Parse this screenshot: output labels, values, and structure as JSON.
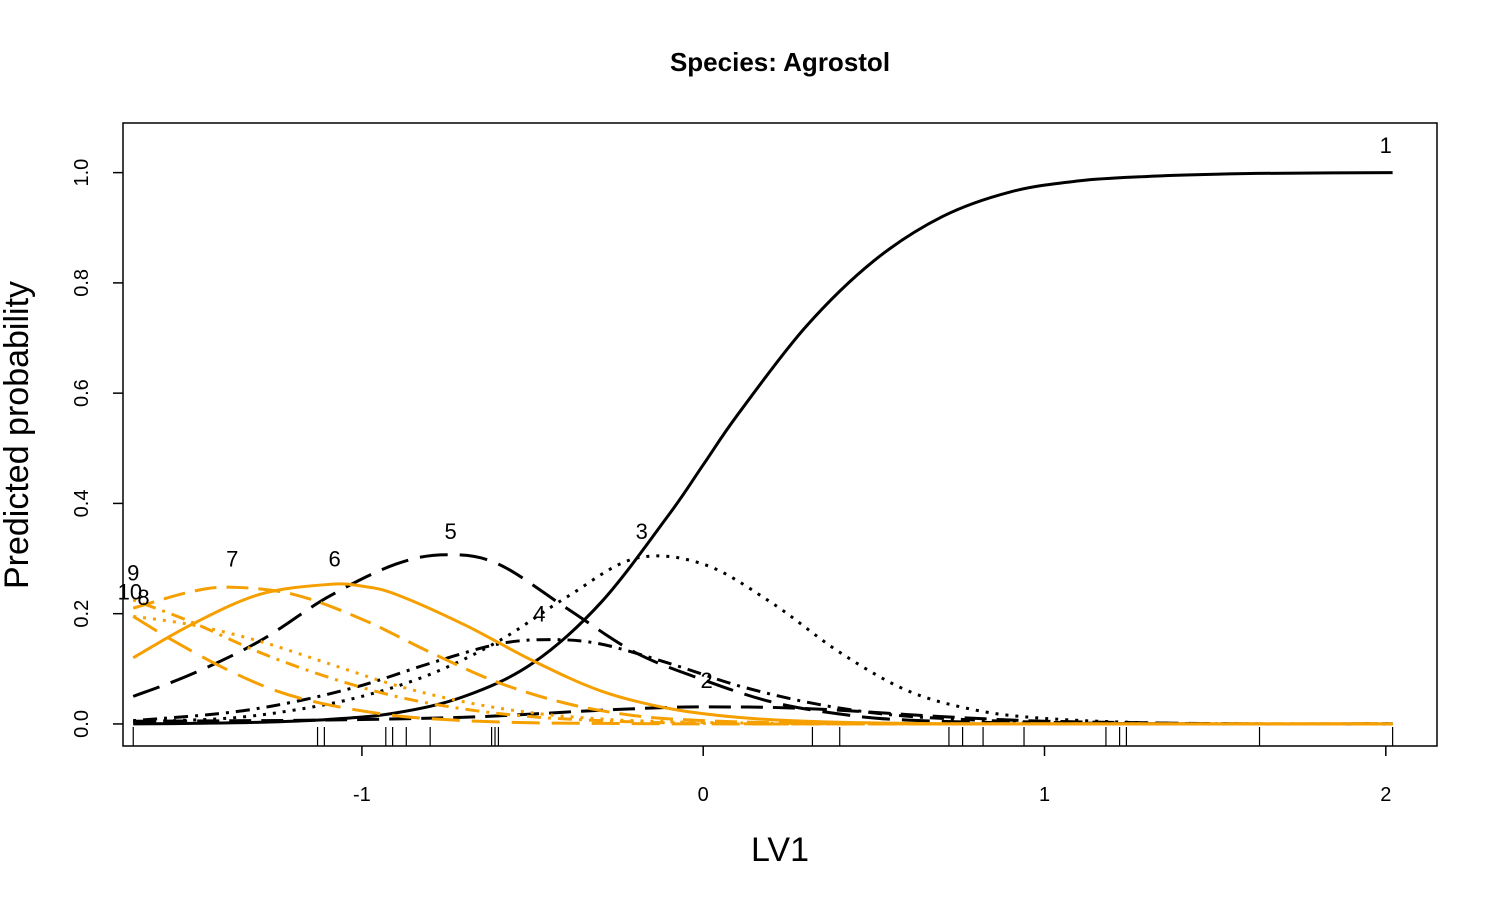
{
  "chart_data": {
    "type": "line",
    "title": "Species: Agrostol",
    "xlabel": "LV1",
    "ylabel": "Predicted probability",
    "xlim": [
      -1.7,
      2.15
    ],
    "ylim": [
      -0.04,
      1.09
    ],
    "x_ticks": [
      {
        "value": -1,
        "label": "-1"
      },
      {
        "value": 0,
        "label": "0"
      },
      {
        "value": 1,
        "label": "1"
      },
      {
        "value": 2,
        "label": "2"
      }
    ],
    "y_ticks": [
      {
        "value": 0.0,
        "label": "0.0"
      },
      {
        "value": 0.2,
        "label": "0.2"
      },
      {
        "value": 0.4,
        "label": "0.4"
      },
      {
        "value": 0.6,
        "label": "0.6"
      },
      {
        "value": 0.8,
        "label": "0.8"
      },
      {
        "value": 1.0,
        "label": "1.0"
      }
    ],
    "grid": false,
    "rug_x": [
      -1.67,
      -1.13,
      -1.11,
      -0.93,
      -0.91,
      -0.87,
      -0.8,
      -0.62,
      -0.61,
      -0.6,
      0.32,
      0.4,
      0.72,
      0.76,
      0.82,
      0.94,
      1.18,
      1.22,
      1.24,
      1.63,
      2.02
    ],
    "series": [
      {
        "name": "1",
        "label_x": 2.0,
        "label_y": 1.05,
        "color": "#000000",
        "dash": "solid",
        "x": [
          -1.67,
          -1.5,
          -1.3,
          -1.1,
          -0.9,
          -0.7,
          -0.5,
          -0.3,
          -0.1,
          0.0,
          0.1,
          0.3,
          0.5,
          0.7,
          0.9,
          1.1,
          1.3,
          1.5,
          1.7,
          2.02
        ],
        "y": [
          0.0,
          0.001,
          0.003,
          0.008,
          0.02,
          0.05,
          0.11,
          0.22,
          0.38,
          0.47,
          0.56,
          0.72,
          0.84,
          0.92,
          0.965,
          0.985,
          0.993,
          0.997,
          0.999,
          1.0
        ]
      },
      {
        "name": "2",
        "label_x": 0.01,
        "label_y": 0.08,
        "color": "#000000",
        "dash": "longdash",
        "x": [
          -1.67,
          -1.3,
          -1.0,
          -0.7,
          -0.5,
          -0.3,
          -0.1,
          0.0,
          0.2,
          0.4,
          0.6,
          0.8,
          1.0,
          1.3,
          1.6,
          2.02
        ],
        "y": [
          0.005,
          0.006,
          0.008,
          0.012,
          0.018,
          0.025,
          0.03,
          0.031,
          0.03,
          0.025,
          0.017,
          0.01,
          0.005,
          0.002,
          0.0,
          0.0
        ]
      },
      {
        "name": "3",
        "label_x": -0.18,
        "label_y": 0.35,
        "color": "#000000",
        "dash": "dotted",
        "x": [
          -1.67,
          -1.4,
          -1.2,
          -1.0,
          -0.8,
          -0.6,
          -0.4,
          -0.2,
          0.0,
          0.2,
          0.4,
          0.6,
          0.8,
          1.0,
          1.3,
          1.6,
          2.02
        ],
        "y": [
          0.004,
          0.01,
          0.025,
          0.05,
          0.09,
          0.15,
          0.23,
          0.3,
          0.29,
          0.22,
          0.13,
          0.06,
          0.025,
          0.01,
          0.002,
          0.0,
          0.0
        ]
      },
      {
        "name": "4",
        "label_x": -0.48,
        "label_y": 0.2,
        "color": "#000000",
        "dash": "dotdash",
        "x": [
          -1.67,
          -1.4,
          -1.2,
          -1.0,
          -0.8,
          -0.6,
          -0.45,
          -0.3,
          -0.1,
          0.1,
          0.3,
          0.5,
          0.7,
          1.0,
          1.4,
          2.02
        ],
        "y": [
          0.006,
          0.02,
          0.04,
          0.07,
          0.11,
          0.145,
          0.153,
          0.145,
          0.11,
          0.07,
          0.04,
          0.02,
          0.01,
          0.003,
          0.0,
          0.0
        ]
      },
      {
        "name": "5",
        "label_x": -0.74,
        "label_y": 0.35,
        "color": "#000000",
        "dash": "longdash2",
        "x": [
          -1.67,
          -1.5,
          -1.3,
          -1.1,
          -0.9,
          -0.75,
          -0.6,
          -0.4,
          -0.2,
          0.0,
          0.2,
          0.4,
          0.6,
          1.0,
          1.5,
          2.02
        ],
        "y": [
          0.05,
          0.09,
          0.15,
          0.23,
          0.29,
          0.307,
          0.29,
          0.21,
          0.13,
          0.08,
          0.04,
          0.018,
          0.007,
          0.001,
          0.0,
          0.0
        ]
      },
      {
        "name": "6",
        "label_x": -1.08,
        "label_y": 0.3,
        "color": "#F5A000",
        "dash": "solid",
        "x": [
          -1.67,
          -1.5,
          -1.3,
          -1.1,
          -1.0,
          -0.9,
          -0.7,
          -0.5,
          -0.3,
          -0.1,
          0.1,
          0.3,
          0.6,
          1.0,
          2.02
        ],
        "y": [
          0.12,
          0.18,
          0.235,
          0.253,
          0.25,
          0.235,
          0.18,
          0.115,
          0.06,
          0.028,
          0.012,
          0.005,
          0.001,
          0.0,
          0.0
        ]
      },
      {
        "name": "7",
        "label_x": -1.38,
        "label_y": 0.3,
        "color": "#F5A000",
        "dash": "longdash",
        "x": [
          -1.67,
          -1.5,
          -1.38,
          -1.2,
          -1.0,
          -0.8,
          -0.6,
          -0.4,
          -0.2,
          0.0,
          0.3,
          0.6,
          1.0,
          2.02
        ],
        "y": [
          0.21,
          0.24,
          0.248,
          0.235,
          0.19,
          0.13,
          0.075,
          0.037,
          0.015,
          0.006,
          0.001,
          0.0,
          0.0,
          0.0
        ]
      },
      {
        "name": "8",
        "label_x": -1.64,
        "label_y": 0.23,
        "color": "#F5A000",
        "dash": "dotted",
        "x": [
          -1.67,
          -1.5,
          -1.3,
          -1.1,
          -0.9,
          -0.7,
          -0.5,
          -0.3,
          -0.1,
          0.2,
          0.6,
          1.0,
          2.02
        ],
        "y": [
          0.195,
          0.18,
          0.15,
          0.11,
          0.07,
          0.04,
          0.02,
          0.009,
          0.004,
          0.001,
          0.0,
          0.0,
          0.0
        ]
      },
      {
        "name": "9",
        "label_x": -1.67,
        "label_y": 0.275,
        "color": "#F5A000",
        "dash": "dotdash",
        "x": [
          -1.67,
          -1.5,
          -1.3,
          -1.1,
          -0.9,
          -0.7,
          -0.5,
          -0.3,
          -0.1,
          0.2,
          0.6,
          1.0,
          2.02
        ],
        "y": [
          0.225,
          0.185,
          0.13,
          0.085,
          0.05,
          0.027,
          0.013,
          0.006,
          0.002,
          0.0,
          0.0,
          0.0,
          0.0
        ]
      },
      {
        "name": "10",
        "label_x": -1.68,
        "label_y": 0.24,
        "color": "#F5A000",
        "dash": "longdash2",
        "x": [
          -1.67,
          -1.55,
          -1.4,
          -1.25,
          -1.1,
          -0.9,
          -0.7,
          -0.5,
          -0.3,
          0.0,
          0.5,
          1.0,
          2.02
        ],
        "y": [
          0.195,
          0.15,
          0.1,
          0.06,
          0.035,
          0.015,
          0.006,
          0.002,
          0.001,
          0.0,
          0.0,
          0.0,
          0.0
        ]
      }
    ]
  }
}
